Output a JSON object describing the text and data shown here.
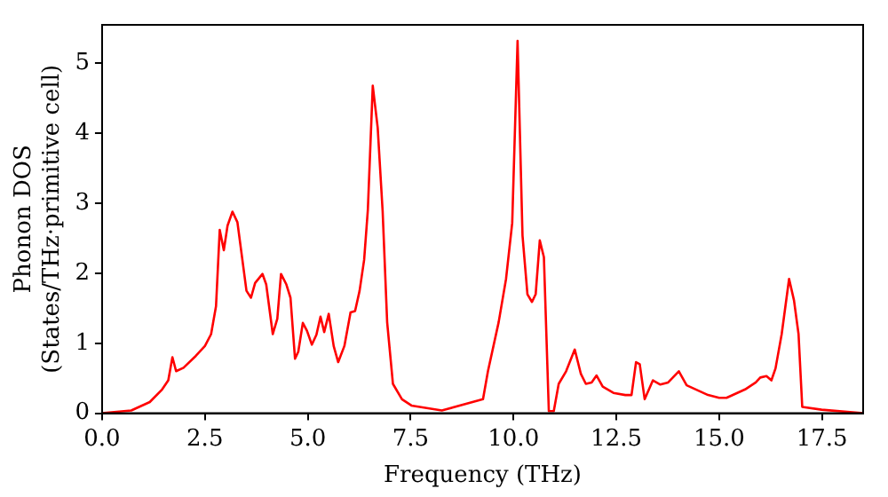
{
  "chart_data": {
    "type": "line",
    "xlabel": "Frequency (THz)",
    "ylabel": "Phonon DOS\n(States/THz·primitive cell)",
    "x": [
      0,
      0.71,
      1.16,
      1.46,
      1.61,
      1.71,
      1.8,
      1.98,
      2.28,
      2.5,
      2.65,
      2.77,
      2.86,
      2.96,
      3.05,
      3.17,
      3.29,
      3.51,
      3.62,
      3.72,
      3.9,
      3.99,
      4.15,
      4.26,
      4.35,
      4.48,
      4.58,
      4.69,
      4.77,
      4.88,
      4.98,
      5.1,
      5.21,
      5.31,
      5.4,
      5.51,
      5.63,
      5.74,
      5.89,
      6.04,
      6.15,
      6.26,
      6.37,
      6.46,
      6.58,
      6.7,
      6.82,
      6.93,
      7.07,
      7.29,
      7.52,
      8.26,
      9.26,
      9.38,
      9.64,
      9.82,
      9.97,
      10.1,
      10.22,
      10.34,
      10.45,
      10.54,
      10.64,
      10.74,
      10.86,
      10.98,
      11.1,
      11.28,
      11.49,
      11.64,
      11.76,
      11.9,
      12.02,
      12.17,
      12.43,
      12.72,
      12.87,
      12.98,
      13.07,
      13.19,
      13.39,
      13.57,
      13.76,
      14.02,
      14.21,
      14.73,
      15.0,
      15.18,
      15.63,
      15.89,
      16.0,
      16.15,
      16.27,
      16.37,
      16.52,
      16.7,
      16.82,
      16.93,
      17.02,
      17.49,
      18.5
    ],
    "series": [
      {
        "color": "#ff0000",
        "values": [
          0,
          0.04,
          0.16,
          0.34,
          0.47,
          0.8,
          0.6,
          0.65,
          0.82,
          0.96,
          1.13,
          1.53,
          2.62,
          2.33,
          2.68,
          2.88,
          2.73,
          1.75,
          1.65,
          1.86,
          1.99,
          1.84,
          1.13,
          1.35,
          1.99,
          1.84,
          1.65,
          0.78,
          0.88,
          1.29,
          1.18,
          0.98,
          1.12,
          1.38,
          1.16,
          1.42,
          0.96,
          0.73,
          0.96,
          1.44,
          1.46,
          1.75,
          2.19,
          2.9,
          4.68,
          4.08,
          2.89,
          1.3,
          0.42,
          0.2,
          0.11,
          0.04,
          0.2,
          0.6,
          1.3,
          1.92,
          2.72,
          5.32,
          2.54,
          1.7,
          1.59,
          1.7,
          2.47,
          2.23,
          0.03,
          0.03,
          0.42,
          0.6,
          0.91,
          0.56,
          0.42,
          0.44,
          0.54,
          0.38,
          0.29,
          0.26,
          0.26,
          0.73,
          0.7,
          0.2,
          0.47,
          0.41,
          0.44,
          0.6,
          0.4,
          0.26,
          0.22,
          0.22,
          0.34,
          0.44,
          0.51,
          0.53,
          0.47,
          0.64,
          1.13,
          1.92,
          1.61,
          1.13,
          0.09,
          0.05,
          0
        ]
      }
    ],
    "xlim": [
      0,
      18.5
    ],
    "xticks": [
      {
        "value": 0,
        "label": "0.0"
      },
      2.5,
      {
        "value": 5,
        "label": "5.0"
      },
      7.5,
      {
        "value": 10,
        "label": "10.0"
      },
      12.5,
      {
        "value": 15,
        "label": "15.0"
      },
      17.5
    ],
    "ylim": [
      0,
      5.55
    ],
    "yticks": [
      0,
      1,
      2,
      3,
      4,
      5
    ],
    "grid": false,
    "legend": false,
    "marker": "none",
    "line_style": "solid"
  }
}
